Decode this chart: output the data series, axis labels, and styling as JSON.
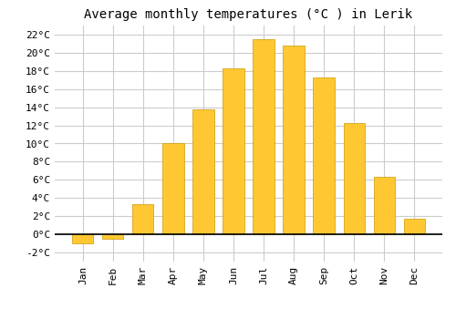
{
  "title": "Average monthly temperatures (°C ) in Lerik",
  "months": [
    "Jan",
    "Feb",
    "Mar",
    "Apr",
    "May",
    "Jun",
    "Jul",
    "Aug",
    "Sep",
    "Oct",
    "Nov",
    "Dec"
  ],
  "temperatures": [
    -1.0,
    -0.5,
    3.3,
    10.0,
    13.8,
    18.3,
    21.5,
    20.8,
    17.3,
    12.3,
    6.3,
    1.7
  ],
  "bar_color": "#FFC832",
  "bar_edge_color": "#CC9900",
  "ylim": [
    -3,
    23
  ],
  "yticks": [
    -2,
    0,
    2,
    4,
    6,
    8,
    10,
    12,
    14,
    16,
    18,
    20,
    22
  ],
  "background_color": "#ffffff",
  "grid_color": "#cccccc",
  "title_fontsize": 10,
  "tick_fontsize": 8,
  "font_family": "monospace"
}
